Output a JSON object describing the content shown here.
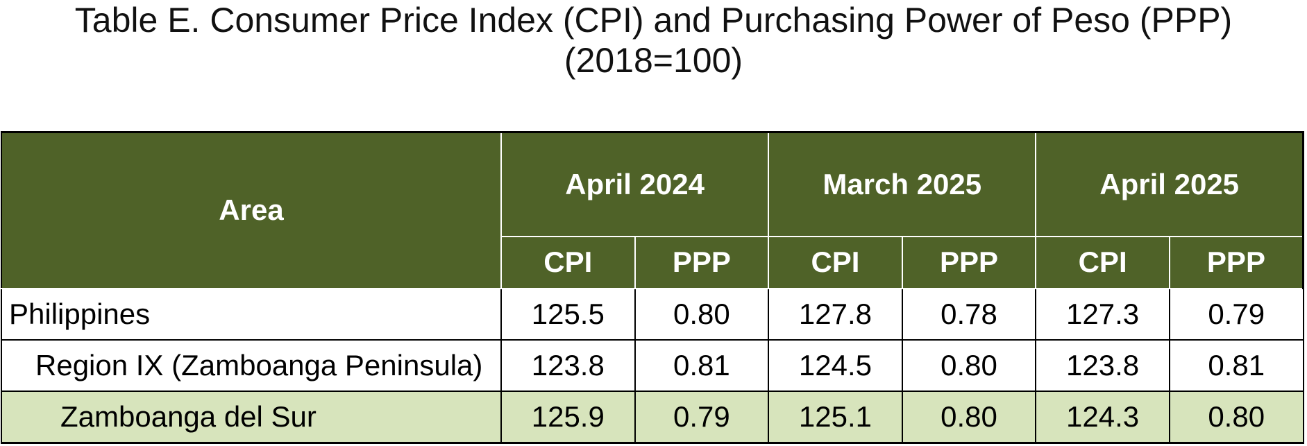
{
  "title": [
    "Table E. Consumer Price Index (CPI) and Purchasing Power of Peso (PPP)",
    "(2018=100)"
  ],
  "table": {
    "header": {
      "area": "Area",
      "periods": [
        "April 2024",
        "March 2025",
        "April 2025"
      ],
      "subheaders": [
        "CPI",
        "PPP",
        "CPI",
        "PPP",
        "CPI",
        "PPP"
      ]
    },
    "rows": [
      [
        "Philippines",
        "125.5",
        "0.80",
        "127.8",
        "0.78",
        "127.3",
        "0.79"
      ],
      [
        "Region IX (Zamboanga Peninsula)",
        "123.8",
        "0.81",
        "124.5",
        "0.80",
        "123.8",
        "0.81"
      ],
      [
        "Zamboanga del Sur",
        "125.9",
        "0.79",
        "125.1",
        "0.80",
        "124.3",
        "0.80"
      ]
    ]
  }
}
